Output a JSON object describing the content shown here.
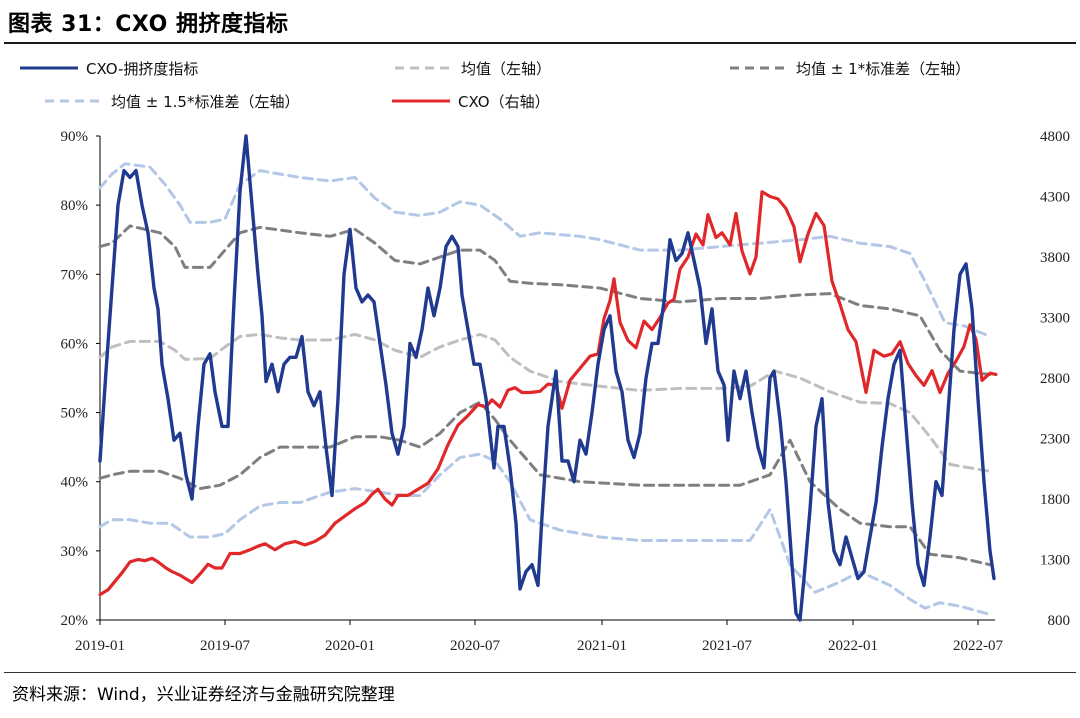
{
  "title": "图表 31：CXO 拥挤度指标",
  "source": "资料来源：Wind，兴业证券经济与金融研究院整理",
  "chart_data": {
    "type": "line",
    "title": "CXO 拥挤度指标",
    "x_ticks": [
      "2019-01",
      "2019-07",
      "2020-01",
      "2020-07",
      "2021-01",
      "2021-07",
      "2022-01",
      "2022-07"
    ],
    "x_range": [
      "2019-01",
      "2022-07"
    ],
    "y_left": {
      "ticks": [
        "20%",
        "30%",
        "40%",
        "50%",
        "60%",
        "70%",
        "80%",
        "90%"
      ],
      "range": [
        20,
        90
      ]
    },
    "y_right": {
      "ticks": [
        "800",
        "1300",
        "1800",
        "2300",
        "2800",
        "3300",
        "3800",
        "4300",
        "4800"
      ],
      "range": [
        800,
        4800
      ]
    },
    "legend": [
      {
        "label": "CXO-拥挤度指标",
        "color": "#1f3a8f",
        "style": "solid"
      },
      {
        "label": "均值（左轴）",
        "color": "#bfbfbf",
        "style": "dashed"
      },
      {
        "label": "均值 ± 1*标准差（左轴）",
        "color": "#7f7f7f",
        "style": "dashed"
      },
      {
        "label": "均值 ± 1.5*标准差（左轴）",
        "color": "#b4c7e7",
        "style": "dashed"
      },
      {
        "label": "CXO（右轴）",
        "color": "#e0282a",
        "style": "solid"
      }
    ],
    "series": [
      {
        "name": "CXO-拥挤度指标",
        "axis": "left",
        "color": "#1f3a8f",
        "x": [
          "2019-01",
          "2019-01-15",
          "2019-02",
          "2019-02-15",
          "2019-03",
          "2019-03-15",
          "2019-04",
          "2019-04-15",
          "2019-05",
          "2019-05-15",
          "2019-06",
          "2019-06-15",
          "2019-07",
          "2019-07-15",
          "2019-08",
          "2019-08-15",
          "2019-09",
          "2019-09-15",
          "2019-10",
          "2019-10-15",
          "2019-11",
          "2019-11-15",
          "2019-12",
          "2019-12-15",
          "2020-01",
          "2020-01-15",
          "2020-02",
          "2020-02-15",
          "2020-03",
          "2020-03-15",
          "2020-04",
          "2020-04-15",
          "2020-05",
          "2020-05-15",
          "2020-06",
          "2020-06-15",
          "2020-07",
          "2020-07-15",
          "2020-08",
          "2020-08-15",
          "2020-09",
          "2020-09-15",
          "2020-10",
          "2020-10-15",
          "2020-11",
          "2020-11-15",
          "2020-12",
          "2020-12-15",
          "2021-01",
          "2021-01-15",
          "2021-02",
          "2021-02-15",
          "2021-03",
          "2021-03-15",
          "2021-04",
          "2021-04-15",
          "2021-05",
          "2021-05-15",
          "2021-06",
          "2021-06-15",
          "2021-07",
          "2021-07-15",
          "2021-08",
          "2021-08-15",
          "2021-09",
          "2021-09-15",
          "2021-10",
          "2021-10-15",
          "2021-11",
          "2021-11-15",
          "2021-12",
          "2021-12-15",
          "2022-01",
          "2022-01-15",
          "2022-02",
          "2022-02-15",
          "2022-03",
          "2022-03-15",
          "2022-04",
          "2022-04-15",
          "2022-05",
          "2022-05-15",
          "2022-06",
          "2022-06-15",
          "2022-07"
        ],
        "values": [
          44,
          72,
          85,
          84,
          70,
          57,
          46,
          38,
          55,
          58,
          48,
          75,
          90,
          67,
          55,
          57,
          60,
          50,
          38,
          70,
          76,
          64,
          65,
          55,
          45,
          55,
          60,
          64,
          75,
          73,
          60,
          48,
          43,
          50,
          38,
          24.5,
          26,
          48,
          50,
          42,
          40,
          55,
          48,
          55,
          72,
          64,
          44,
          47,
          55,
          58,
          65,
          72,
          75,
          68,
          64,
          63,
          55,
          54,
          48,
          44,
          42,
          55,
          56,
          50,
          26,
          21,
          27,
          50,
          32,
          28,
          27,
          24,
          25,
          42,
          58,
          48,
          30,
          25,
          38,
          50,
          71,
          65,
          26,
          26,
          26
        ],
        "note": "values estimated from chart; plotted with a fine-grained digitized path"
      },
      {
        "name": "均值（左轴）",
        "axis": "left",
        "color": "#bfbfbf",
        "style": "dashed"
      },
      {
        "name": "均值 + 1*标准差（左轴）",
        "axis": "left",
        "color": "#7f7f7f",
        "style": "dashed"
      },
      {
        "name": "均值 - 1*标准差（左轴）",
        "axis": "left",
        "color": "#7f7f7f",
        "style": "dashed"
      },
      {
        "name": "均值 + 1.5*标准差（左轴）",
        "axis": "left",
        "color": "#b4c7e7",
        "style": "dashed"
      },
      {
        "name": "均值 - 1.5*标准差（左轴）",
        "axis": "left",
        "color": "#b4c7e7",
        "style": "dashed"
      },
      {
        "name": "CXO（右轴）",
        "axis": "right",
        "color": "#e0282a",
        "style": "solid"
      }
    ]
  }
}
